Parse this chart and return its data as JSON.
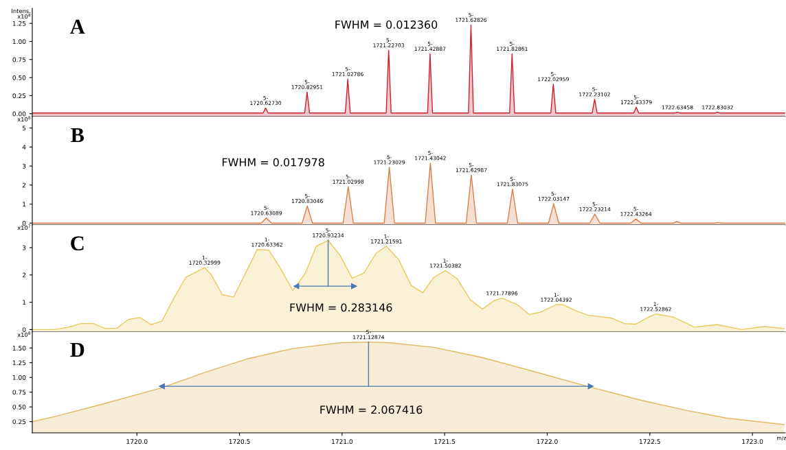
{
  "chart_data": [
    {
      "type": "area",
      "title": "A",
      "ylabel": "Intens.\nx10$^{8}$",
      "xlim": [
        1719.49,
        1723.16
      ],
      "ylim": [
        -0.04,
        1.46
      ],
      "yticks": [
        {
          "value": 0,
          "label": "0.00"
        },
        0.25,
        {
          "value": 0.5,
          "label": "0.50"
        },
        0.75,
        {
          "value": 1,
          "label": "1.00"
        },
        1.25
      ],
      "tick_labels": "y",
      "grid": false,
      "legend": false,
      "series": [
        {
          "color": "#cc2030",
          "x": [
            1719.49,
            1720.6153,
            1720.6273,
            1720.6393,
            1720.81751,
            1720.82951,
            1720.84151,
            1721.01586,
            1721.02786,
            1721.03986,
            1721.21503,
            1721.22703,
            1721.23903,
            1721.41687,
            1721.42887,
            1721.44087,
            1721.61626,
            1721.62826,
            1721.64026,
            1721.81661,
            1721.82861,
            1721.84061,
            1722.01759,
            1722.02959,
            1722.04159,
            1722.21902,
            1722.23102,
            1722.24302,
            1722.42179,
            1722.43379,
            1722.44579,
            1722.62258,
            1722.63458,
            1722.64658,
            1722.81832,
            1722.83032,
            1722.84232,
            1723.16
          ],
          "values": [
            0.01,
            0.01,
            0.08,
            0.01,
            0.01,
            0.3,
            0.01,
            0.01,
            0.48,
            0.01,
            0.01,
            0.88,
            0.01,
            0.01,
            0.83,
            0.01,
            0.01,
            1.23,
            0.01,
            0.01,
            0.83,
            0.01,
            0.01,
            0.41,
            0.01,
            0.01,
            0.2,
            0.01,
            0.01,
            0.09,
            0.01,
            0.01,
            0.02,
            0.01,
            0.01,
            0.02,
            0.01,
            0.01
          ]
        }
      ],
      "annotations": [
        {
          "text": "5-\n1720.62730",
          "x": 1720.6273,
          "y": 0.08
        },
        {
          "text": "5-\n1720.82951",
          "x": 1720.82951,
          "y": 0.3
        },
        {
          "text": "5-\n1721.02786",
          "x": 1721.02786,
          "y": 0.48
        },
        {
          "text": "5-\n1721.22703",
          "x": 1721.22703,
          "y": 0.88
        },
        {
          "text": "5-\n1721.42887",
          "x": 1721.42887,
          "y": 0.83
        },
        {
          "text": "5-\n1721.62826",
          "x": 1721.62826,
          "y": 1.23
        },
        {
          "text": "5-\n1721.82861",
          "x": 1721.82861,
          "y": 0.83
        },
        {
          "text": "5-\n1722.02959",
          "x": 1722.02959,
          "y": 0.41
        },
        {
          "text": "5-\n1722.23102",
          "x": 1722.23102,
          "y": 0.2
        },
        {
          "text": "5-\n1722.43379",
          "x": 1722.43379,
          "y": 0.09
        },
        {
          "text": "1722.63458",
          "x": 1722.63458,
          "y": 0.02
        },
        {
          "text": "1722.83032",
          "x": 1722.83032,
          "y": 0.02
        },
        "FWHM = 0.012360"
      ]
    },
    {
      "type": "area",
      "title": "B",
      "ylabel": "x10$^{8}$",
      "xlim": [
        1719.49,
        1723.16
      ],
      "ylim": [
        -0.1,
        5.6
      ],
      "yticks": [
        0,
        1,
        2,
        3,
        4,
        5
      ],
      "tick_labels": "y",
      "grid": false,
      "legend": false,
      "series": [
        {
          "color": "#d9804a",
          "x": [
            1719.49,
            1720.60589,
            1720.63089,
            1720.65589,
            1720.80546,
            1720.83046,
            1720.85546,
            1721.00498,
            1721.02998,
            1721.05498,
            1721.20529,
            1721.23029,
            1721.25529,
            1721.40542,
            1721.43042,
            1721.45542,
            1721.60487,
            1721.62987,
            1721.65487,
            1721.80575,
            1721.83075,
            1721.85575,
            1722.00647,
            1722.03147,
            1722.05647,
            1722.20714,
            1722.23214,
            1722.25714,
            1722.40764,
            1722.43264,
            1722.45764,
            1722.613,
            1722.633,
            1722.653,
            1722.813,
            1722.833,
            1722.853,
            1723.16
          ],
          "values": [
            0,
            0,
            0.27,
            0,
            0,
            0.9,
            0,
            0,
            1.92,
            0,
            0,
            2.94,
            0,
            0,
            3.16,
            0,
            0,
            2.53,
            0,
            0,
            1.79,
            0,
            0,
            1.02,
            0,
            0,
            0.47,
            0,
            0,
            0.22,
            0,
            0,
            0.08,
            0,
            0,
            0.03,
            0,
            0
          ]
        }
      ],
      "annotations": [
        {
          "text": "5-\n1720.63089",
          "x": 1720.63089,
          "y": 0.27
        },
        {
          "text": "5-\n1720.83046",
          "x": 1720.83046,
          "y": 0.9
        },
        {
          "text": "5-\n1721.02998",
          "x": 1721.02998,
          "y": 1.92
        },
        {
          "text": "5-\n1721.23029",
          "x": 1721.23029,
          "y": 2.94
        },
        {
          "text": "5-\n1721.43042",
          "x": 1721.43042,
          "y": 3.16
        },
        {
          "text": "5-\n1721.62987",
          "x": 1721.62987,
          "y": 2.53
        },
        {
          "text": "5-\n1721.83075",
          "x": 1721.83075,
          "y": 1.79
        },
        {
          "text": "5-\n1722.03147",
          "x": 1722.03147,
          "y": 1.02
        },
        {
          "text": "5-\n1722.23214",
          "x": 1722.23214,
          "y": 0.47
        },
        {
          "text": "5-\n1722.43264",
          "x": 1722.43264,
          "y": 0.22
        },
        "FWHM = 0.017978"
      ]
    },
    {
      "type": "area",
      "title": "C",
      "ylabel": "x10$^{7}$",
      "xlim": [
        1719.49,
        1723.16
      ],
      "ylim": [
        -0.09,
        3.83
      ],
      "yticks": [
        0,
        1,
        2,
        3
      ],
      "tick_labels": "y",
      "grid": false,
      "legend": false,
      "series": [
        {
          "color": "#e8c95a",
          "x": [
            1719.49,
            1719.6,
            1719.666,
            1719.727,
            1719.788,
            1719.844,
            1719.902,
            1719.958,
            1720.015,
            1720.068,
            1720.122,
            1720.178,
            1720.239,
            1720.33,
            1720.362,
            1720.416,
            1720.471,
            1720.533,
            1720.586,
            1720.643,
            1720.699,
            1720.76,
            1720.821,
            1720.874,
            1720.932,
            1720.991,
            1721.049,
            1721.106,
            1721.166,
            1721.216,
            1721.276,
            1721.337,
            1721.394,
            1721.448,
            1721.504,
            1721.563,
            1721.624,
            1721.684,
            1721.741,
            1721.779,
            1721.855,
            1721.912,
            1721.968,
            1722.044,
            1722.076,
            1722.139,
            1722.197,
            1722.313,
            1722.376,
            1722.432,
            1722.49,
            1722.529,
            1722.614,
            1722.717,
            1722.827,
            1722.948,
            1723.058,
            1723.155
          ],
          "values": [
            0,
            0,
            0.09,
            0.22,
            0.22,
            0.04,
            0.05,
            0.37,
            0.44,
            0.18,
            0.31,
            1.12,
            1.92,
            2.27,
            2.01,
            1.28,
            1.19,
            2.12,
            2.93,
            2.91,
            2.25,
            1.43,
            2.07,
            3.05,
            3.27,
            2.71,
            1.88,
            2.07,
            2.8,
            3.05,
            2.56,
            1.61,
            1.35,
            1.92,
            2.16,
            1.85,
            1.1,
            0.75,
            1.06,
            1.15,
            0.91,
            0.55,
            0.64,
            0.91,
            0.91,
            0.69,
            0.53,
            0.42,
            0.22,
            0.2,
            0.44,
            0.57,
            0.46,
            0.09,
            0.18,
            0.0,
            0.11,
            0.04
          ]
        },
        {
          "type": "line",
          "color": "#4a78b5",
          "marker": "triangle",
          "x": [
            1720.777,
            1721.058
          ],
          "values": [
            1.59,
            1.59
          ]
        },
        {
          "type": "line",
          "color": "#4a78b5",
          "x": [
            1720.932,
            1720.932
          ],
          "values": [
            3.27,
            1.59
          ]
        }
      ],
      "annotations": [
        {
          "text": "1-\n1720.32999",
          "x": 1720.33,
          "y": 2.27
        },
        {
          "text": "1-\n1720.63362",
          "x": 1720.634,
          "y": 2.93
        },
        {
          "text": "5-\n1720.93234",
          "x": 1720.932,
          "y": 3.27
        },
        {
          "text": "1-\n1721.21591",
          "x": 1721.216,
          "y": 3.05
        },
        {
          "text": "1-\n1721.50382",
          "x": 1721.504,
          "y": 2.16
        },
        {
          "text": "1721.77896",
          "x": 1721.779,
          "y": 1.15
        },
        {
          "text": "1-\n1722.04392",
          "x": 1722.044,
          "y": 0.91
        },
        {
          "text": "1-\n1722.52862",
          "x": 1722.529,
          "y": 0.57
        },
        "FWHM = 0.283146"
      ]
    },
    {
      "type": "area",
      "title": "D",
      "ylabel": "x10$^{8}$",
      "xlabel": "m/z",
      "xlim": [
        1719.49,
        1723.16
      ],
      "ylim": [
        0.06,
        1.77
      ],
      "yticks": [
        0.25,
        {
          "value": 0.5,
          "label": "0.50"
        },
        0.75,
        {
          "value": 1,
          "label": "1.00"
        },
        1.25,
        {
          "value": 1.5,
          "label": "1.50"
        }
      ],
      "xticks": [
        {
          "value": 1720,
          "label": "1720.0"
        },
        1720.5,
        {
          "value": 1721,
          "label": "1721.0"
        },
        1721.5,
        {
          "value": 1722,
          "label": "1722.0"
        },
        1722.5,
        {
          "value": 1723,
          "label": "1723.0"
        }
      ],
      "grid": false,
      "legend": false,
      "series": [
        {
          "color": "#e0b860",
          "x": [
            1719.49,
            1719.604,
            1719.824,
            1720.117,
            1720.336,
            1720.533,
            1720.759,
            1720.995,
            1721.129,
            1721.229,
            1721.447,
            1721.68,
            1721.924,
            1722.205,
            1722.461,
            1722.681,
            1722.874,
            1723.155
          ],
          "values": [
            0.25,
            0.34,
            0.54,
            0.82,
            1.09,
            1.31,
            1.49,
            1.59,
            1.6,
            1.59,
            1.51,
            1.34,
            1.11,
            0.84,
            0.61,
            0.44,
            0.31,
            0.2
          ]
        },
        {
          "type": "line",
          "color": "#4a78b5",
          "marker": "triangle",
          "x": [
            1720.122,
            1722.212
          ],
          "values": [
            0.85,
            0.85
          ]
        },
        {
          "type": "line",
          "color": "#4a78b5",
          "x": [
            1721.129,
            1721.129
          ],
          "values": [
            1.6,
            0.85
          ]
        }
      ],
      "annotations": [
        {
          "text": "5-\n1721.12874",
          "x": 1721.129,
          "y": 1.6
        },
        "FWHM = 2.067416"
      ]
    }
  ]
}
